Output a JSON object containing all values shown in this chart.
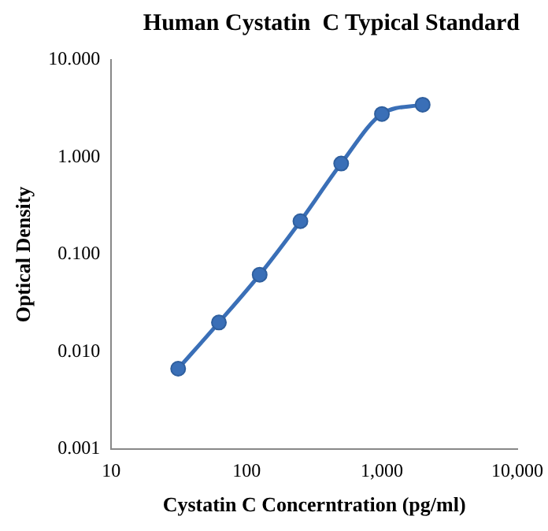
{
  "chart_data": {
    "type": "line",
    "title": "Human Cystatin  C Typical Standard",
    "xlabel": "Cystatin C Concerntration (pg/ml)",
    "ylabel": "Optical Density",
    "x": [
      31.25,
      62.5,
      125,
      250,
      500,
      1000,
      2000
    ],
    "series": [
      {
        "color": "#3a6fb7",
        "values": [
          0.0067,
          0.02,
          0.062,
          0.22,
          0.86,
          2.78,
          3.46
        ]
      }
    ],
    "log": "xy",
    "marker": "circle",
    "legend": false,
    "xlim": [
      10,
      10000
    ],
    "xticks": [
      {
        "value": 10,
        "label": "10"
      },
      {
        "value": 100,
        "label": "100"
      },
      {
        "value": 1000,
        "label": "1,000"
      },
      {
        "value": 10000,
        "label": "10,000"
      }
    ],
    "ylim": [
      0.001,
      10
    ],
    "yticks": [
      {
        "value": 0.001,
        "label": "0.001"
      },
      {
        "value": 0.01,
        "label": "0.010"
      },
      {
        "value": 0.1,
        "label": "0.100"
      },
      {
        "value": 1,
        "label": "1.000"
      },
      {
        "value": 10,
        "label": "10.000"
      }
    ]
  }
}
